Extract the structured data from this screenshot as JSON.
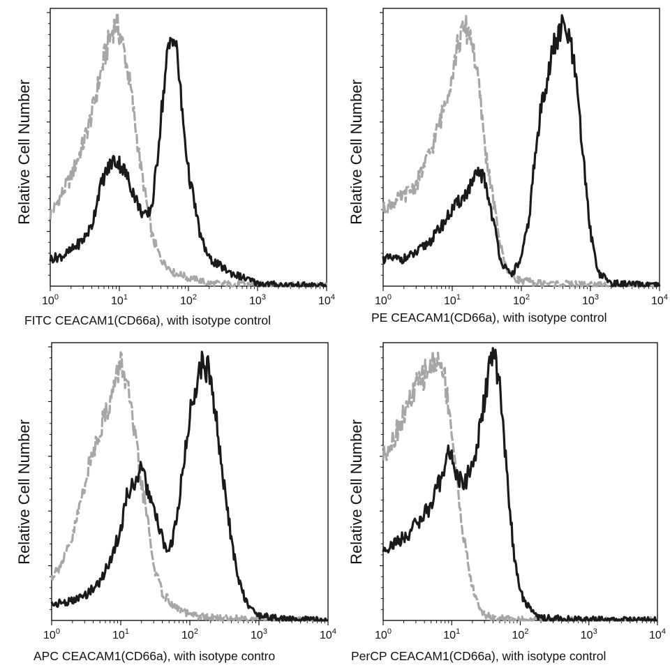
{
  "figure": {
    "ylabel": "Relative Cell Number",
    "colors": {
      "isotype": "#a6a6a6",
      "stained": "#1a1a1a"
    }
  },
  "chart_data": [
    {
      "type": "line",
      "title": "",
      "xlabel": "FITC CEACAM1(CD66a), with isotype control",
      "ylabel": "Relative Cell Number",
      "xscale": "log",
      "xlim": [
        1,
        10000
      ],
      "xticks": [
        1,
        10,
        100,
        1000,
        10000
      ],
      "xtick_labels": [
        "10^0",
        "10^1",
        "10^2",
        "10^3",
        "10^4"
      ],
      "ylim": [
        0,
        100
      ],
      "grid": false,
      "series": [
        {
          "style": "dashed-gray",
          "x": [
            1,
            1.5,
            2,
            3,
            4,
            5,
            6,
            7,
            8,
            9,
            10,
            12,
            15,
            20,
            25,
            30,
            40,
            60,
            100,
            200,
            1000,
            10000
          ],
          "y": [
            26,
            34,
            40,
            52,
            63,
            74,
            83,
            89,
            94,
            96,
            93,
            85,
            70,
            45,
            30,
            18,
            10,
            5,
            3,
            1,
            0.5,
            0
          ]
        },
        {
          "style": "solid-black",
          "x": [
            1,
            1.5,
            2,
            3,
            4,
            5,
            6,
            8,
            10,
            12,
            15,
            20,
            25,
            30,
            35,
            40,
            50,
            60,
            70,
            80,
            100,
            150,
            200,
            400,
            1000,
            2000,
            10000
          ],
          "y": [
            10,
            11,
            13,
            17,
            22,
            34,
            40,
            46,
            45,
            42,
            36,
            28,
            25,
            30,
            45,
            62,
            85,
            93,
            83,
            65,
            42,
            18,
            10,
            5,
            1,
            0.5,
            0
          ]
        }
      ]
    },
    {
      "type": "line",
      "title": "",
      "xlabel": "PE CEACAM1(CD66a), with isotype control",
      "ylabel": "Relative Cell Number",
      "xscale": "log",
      "xlim": [
        1,
        10000
      ],
      "xticks": [
        1,
        10,
        100,
        1000,
        10000
      ],
      "xtick_labels": [
        "10^0",
        "10^1",
        "10^2",
        "10^3",
        "10^4"
      ],
      "ylim": [
        0,
        100
      ],
      "grid": false,
      "series": [
        {
          "style": "dashed-gray",
          "x": [
            1,
            2,
            3,
            5,
            7,
            10,
            12,
            15,
            18,
            20,
            25,
            30,
            40,
            50,
            60,
            80,
            100,
            200,
            1000,
            10000
          ],
          "y": [
            28,
            33,
            37,
            50,
            62,
            78,
            88,
            94,
            93,
            88,
            70,
            50,
            30,
            15,
            7,
            3,
            2,
            1,
            0.5,
            0
          ]
        },
        {
          "style": "solid-black",
          "x": [
            1,
            2,
            3,
            5,
            8,
            10,
            15,
            20,
            25,
            30,
            40,
            50,
            60,
            70,
            80,
            100,
            130,
            150,
            200,
            300,
            400,
            500,
            600,
            800,
            1000,
            1300,
            2000,
            10000
          ],
          "y": [
            10,
            10,
            12,
            17,
            24,
            28,
            33,
            38,
            42,
            38,
            23,
            10,
            6,
            4,
            6,
            10,
            25,
            42,
            68,
            88,
            95,
            90,
            78,
            45,
            20,
            5,
            1,
            0
          ]
        }
      ]
    },
    {
      "type": "line",
      "title": "",
      "xlabel": "APC CEACAM1(CD66a), with isotype contro",
      "ylabel": "Relative Cell Number",
      "xscale": "log",
      "xlim": [
        1,
        10000
      ],
      "xticks": [
        1,
        10,
        100,
        1000,
        10000
      ],
      "xtick_labels": [
        "10^0",
        "10^1",
        "10^2",
        "10^3",
        "10^4"
      ],
      "ylim": [
        0,
        100
      ],
      "grid": false,
      "series": [
        {
          "style": "dashed-gray",
          "x": [
            1,
            1.5,
            2,
            3,
            4,
            5,
            7,
            9,
            10,
            12,
            15,
            20,
            25,
            30,
            40,
            60,
            100,
            200,
            1000,
            10000
          ],
          "y": [
            16,
            22,
            30,
            50,
            62,
            70,
            80,
            90,
            95,
            88,
            72,
            50,
            35,
            20,
            10,
            5,
            2,
            1,
            0.5,
            0
          ]
        },
        {
          "style": "solid-black",
          "x": [
            1,
            2,
            3,
            5,
            7,
            10,
            12,
            15,
            20,
            25,
            30,
            40,
            50,
            60,
            80,
            100,
            120,
            150,
            200,
            250,
            300,
            400,
            500,
            700,
            1000,
            2000,
            10000
          ],
          "y": [
            6,
            7,
            9,
            14,
            22,
            33,
            45,
            50,
            55,
            47,
            40,
            30,
            24,
            33,
            55,
            75,
            85,
            95,
            90,
            70,
            52,
            30,
            15,
            5,
            2,
            0.5,
            0
          ]
        }
      ]
    },
    {
      "type": "line",
      "title": "",
      "xlabel": "PerCP CEACAM1(CD66a), with isotype control",
      "ylabel": "Relative Cell Number",
      "xscale": "log",
      "xlim": [
        1,
        10000
      ],
      "xticks": [
        1,
        10,
        100,
        1000,
        10000
      ],
      "xtick_labels": [
        "10^0",
        "10^1",
        "10^2",
        "10^3",
        "10^4"
      ],
      "ylim": [
        0,
        100
      ],
      "grid": false,
      "series": [
        {
          "style": "dashed-gray",
          "x": [
            1,
            1.5,
            2,
            3,
            4,
            5,
            6,
            7,
            8,
            10,
            12,
            15,
            20,
            25,
            30,
            40,
            60,
            100,
            1000,
            10000
          ],
          "y": [
            60,
            68,
            75,
            85,
            90,
            93,
            95,
            93,
            88,
            70,
            50,
            30,
            12,
            5,
            2,
            1,
            0.5,
            0.3,
            0,
            0
          ]
        },
        {
          "style": "solid-black",
          "x": [
            1,
            2,
            3,
            5,
            7,
            9,
            10,
            12,
            15,
            20,
            25,
            30,
            35,
            40,
            45,
            50,
            60,
            70,
            80,
            100,
            150,
            200,
            400,
            1000,
            10000
          ],
          "y": [
            26,
            30,
            35,
            42,
            52,
            62,
            60,
            52,
            50,
            56,
            68,
            80,
            92,
            97,
            93,
            85,
            62,
            42,
            25,
            10,
            3,
            1,
            0.5,
            0.2,
            0
          ]
        }
      ]
    }
  ]
}
